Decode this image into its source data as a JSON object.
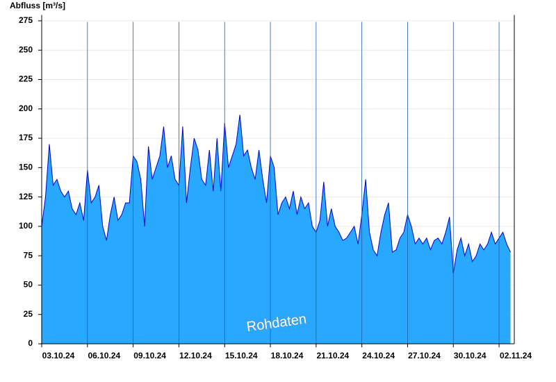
{
  "chart_data": {
    "type": "area",
    "title": "Abfluss [m³/s]",
    "annotation": "Rohdaten",
    "x": [
      "2024-10-03T00:00",
      "2024-10-03T06:00",
      "2024-10-03T12:00",
      "2024-10-03T18:00",
      "2024-10-04T00:00",
      "2024-10-04T06:00",
      "2024-10-04T12:00",
      "2024-10-04T18:00",
      "2024-10-05T00:00",
      "2024-10-05T06:00",
      "2024-10-05T12:00",
      "2024-10-05T18:00",
      "2024-10-06T00:00",
      "2024-10-06T06:00",
      "2024-10-06T12:00",
      "2024-10-06T18:00",
      "2024-10-07T00:00",
      "2024-10-07T06:00",
      "2024-10-07T12:00",
      "2024-10-07T18:00",
      "2024-10-08T00:00",
      "2024-10-08T06:00",
      "2024-10-08T12:00",
      "2024-10-08T18:00",
      "2024-10-09T00:00",
      "2024-10-09T06:00",
      "2024-10-09T12:00",
      "2024-10-09T18:00",
      "2024-10-10T00:00",
      "2024-10-10T06:00",
      "2024-10-10T12:00",
      "2024-10-10T18:00",
      "2024-10-11T00:00",
      "2024-10-11T06:00",
      "2024-10-11T12:00",
      "2024-10-11T18:00",
      "2024-10-12T00:00",
      "2024-10-12T06:00",
      "2024-10-12T12:00",
      "2024-10-12T18:00",
      "2024-10-13T00:00",
      "2024-10-13T06:00",
      "2024-10-13T12:00",
      "2024-10-13T18:00",
      "2024-10-14T00:00",
      "2024-10-14T06:00",
      "2024-10-14T12:00",
      "2024-10-14T18:00",
      "2024-10-15T00:00",
      "2024-10-15T06:00",
      "2024-10-15T12:00",
      "2024-10-15T18:00",
      "2024-10-16T00:00",
      "2024-10-16T06:00",
      "2024-10-16T12:00",
      "2024-10-16T18:00",
      "2024-10-17T00:00",
      "2024-10-17T06:00",
      "2024-10-17T12:00",
      "2024-10-17T18:00",
      "2024-10-18T00:00",
      "2024-10-18T06:00",
      "2024-10-18T12:00",
      "2024-10-18T18:00",
      "2024-10-19T00:00",
      "2024-10-19T06:00",
      "2024-10-19T12:00",
      "2024-10-19T18:00",
      "2024-10-20T00:00",
      "2024-10-20T06:00",
      "2024-10-20T12:00",
      "2024-10-20T18:00",
      "2024-10-21T00:00",
      "2024-10-21T06:00",
      "2024-10-21T12:00",
      "2024-10-21T18:00",
      "2024-10-22T00:00",
      "2024-10-22T06:00",
      "2024-10-22T12:00",
      "2024-10-22T18:00",
      "2024-10-23T00:00",
      "2024-10-23T06:00",
      "2024-10-23T12:00",
      "2024-10-23T18:00",
      "2024-10-24T00:00",
      "2024-10-24T06:00",
      "2024-10-24T12:00",
      "2024-10-24T18:00",
      "2024-10-25T00:00",
      "2024-10-25T06:00",
      "2024-10-25T12:00",
      "2024-10-25T18:00",
      "2024-10-26T00:00",
      "2024-10-26T06:00",
      "2024-10-26T12:00",
      "2024-10-26T18:00",
      "2024-10-27T00:00",
      "2024-10-27T06:00",
      "2024-10-27T12:00",
      "2024-10-27T18:00",
      "2024-10-28T00:00",
      "2024-10-28T06:00",
      "2024-10-28T12:00",
      "2024-10-28T18:00",
      "2024-10-29T00:00",
      "2024-10-29T06:00",
      "2024-10-29T12:00",
      "2024-10-29T18:00",
      "2024-10-30T00:00",
      "2024-10-30T06:00",
      "2024-10-30T12:00",
      "2024-10-30T18:00",
      "2024-10-31T00:00",
      "2024-10-31T06:00",
      "2024-10-31T12:00",
      "2024-10-31T18:00",
      "2024-11-01T00:00",
      "2024-11-01T06:00",
      "2024-11-01T12:00",
      "2024-11-01T18:00",
      "2024-11-02T00:00",
      "2024-11-02T06:00",
      "2024-11-02T12:00",
      "2024-11-02T18:00"
    ],
    "series": [
      {
        "name": "Abfluss",
        "color": "#29a8ff",
        "line_color": "#0000cc",
        "values": [
          100,
          125,
          170,
          135,
          140,
          130,
          125,
          130,
          115,
          110,
          120,
          105,
          148,
          120,
          125,
          135,
          100,
          88,
          110,
          125,
          105,
          110,
          120,
          120,
          160,
          155,
          140,
          100,
          168,
          140,
          150,
          160,
          185,
          150,
          160,
          140,
          135,
          185,
          120,
          150,
          175,
          165,
          140,
          135,
          165,
          130,
          175,
          130,
          188,
          150,
          160,
          170,
          195,
          160,
          165,
          150,
          140,
          165,
          140,
          120,
          160,
          150,
          110,
          120,
          125,
          115,
          130,
          110,
          125,
          115,
          120,
          100,
          95,
          105,
          138,
          100,
          115,
          100,
          95,
          88,
          90,
          95,
          100,
          85,
          110,
          140,
          95,
          80,
          75,
          95,
          110,
          120,
          78,
          80,
          90,
          95,
          110,
          100,
          85,
          90,
          85,
          90,
          80,
          88,
          90,
          85,
          95,
          108,
          60,
          80,
          90,
          75,
          85,
          70,
          75,
          85,
          80,
          85,
          95,
          85,
          90,
          95,
          85,
          78
        ]
      }
    ],
    "xlim": [
      "2024-10-03T00:00",
      "2024-11-03T00:00"
    ],
    "xticks": [
      {
        "value": "2024-10-03T00:00",
        "label": "03.10.24"
      },
      {
        "value": "2024-10-06T00:00",
        "label": "06.10.24"
      },
      {
        "value": "2024-10-09T00:00",
        "label": "09.10.24"
      },
      {
        "value": "2024-10-12T00:00",
        "label": "12.10.24"
      },
      {
        "value": "2024-10-15T00:00",
        "label": "15.10.24"
      },
      {
        "value": "2024-10-18T00:00",
        "label": "18.10.24"
      },
      {
        "value": "2024-10-21T00:00",
        "label": "21.10.24"
      },
      {
        "value": "2024-10-24T00:00",
        "label": "24.10.24"
      },
      {
        "value": "2024-10-27T00:00",
        "label": "27.10.24"
      },
      {
        "value": "2024-10-30T00:00",
        "label": "30.10.24"
      },
      {
        "value": "2024-11-02T00:00",
        "label": "02.11.24"
      }
    ],
    "ylim": [
      0,
      280
    ],
    "yticks": [
      0,
      25,
      50,
      75,
      100,
      125,
      150,
      175,
      200,
      225,
      250,
      275
    ],
    "grid": true
  }
}
